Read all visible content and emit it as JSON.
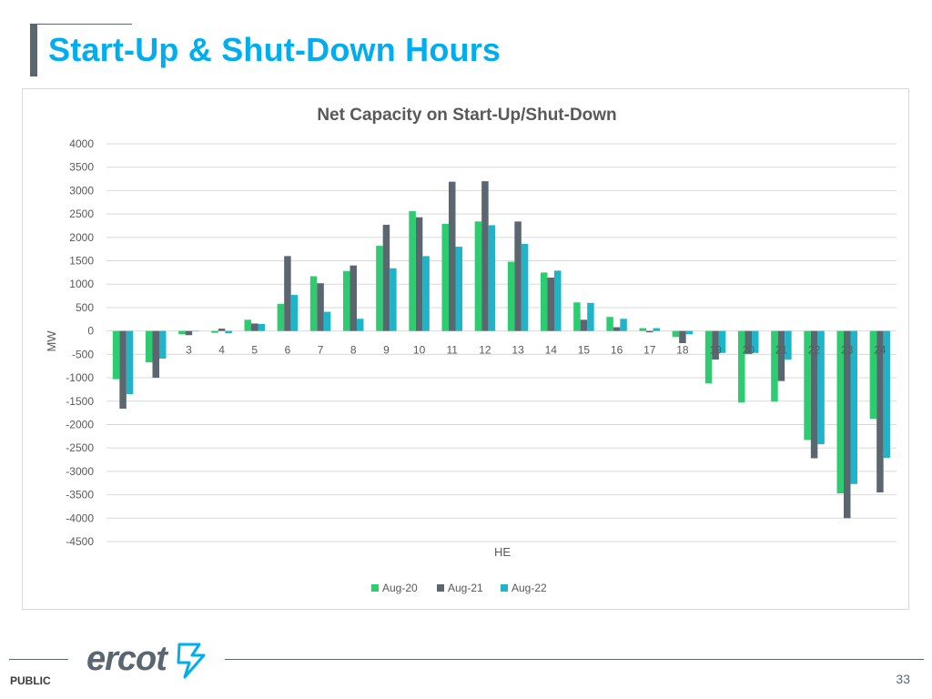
{
  "slide": {
    "title": "Start-Up & Shut-Down Hours",
    "footer_label": "PUBLIC",
    "page_number": "33",
    "logo_text": "ercot"
  },
  "colors": {
    "title": "#00aeef",
    "accent_bar": "#5b6770",
    "gridline": "#d9d9d9",
    "axis_text": "#595959",
    "logo": "#5b6770",
    "logo_bolt": "#00aeef"
  },
  "chart_data": {
    "type": "bar",
    "title": "Net Capacity on Start-Up/Shut-Down",
    "xlabel": "HE",
    "ylabel": "MW",
    "ylim": [
      -4500,
      4000
    ],
    "yticks": [
      4000,
      3500,
      3000,
      2500,
      2000,
      1500,
      1000,
      500,
      0,
      -500,
      -1000,
      -1500,
      -2000,
      -2500,
      -3000,
      -3500,
      -4000,
      -4500
    ],
    "grid": true,
    "legend_position": "bottom",
    "categories": [
      "1",
      "2",
      "3",
      "4",
      "5",
      "6",
      "7",
      "8",
      "9",
      "10",
      "11",
      "12",
      "13",
      "14",
      "15",
      "16",
      "17",
      "18",
      "19",
      "20",
      "21",
      "22",
      "23",
      "24"
    ],
    "shown_tick_labels": [
      "",
      "",
      "3",
      "4",
      "5",
      "6",
      "7",
      "8",
      "9",
      "10",
      "11",
      "12",
      "13",
      "14",
      "15",
      "16",
      "17",
      "18",
      "19",
      "20",
      "21",
      "22",
      "23",
      "24"
    ],
    "series": [
      {
        "name": "Aug-20",
        "color": "#2ecc71",
        "values": [
          -1030,
          -670,
          -70,
          -40,
          240,
          580,
          1170,
          1280,
          1820,
          2560,
          2290,
          2340,
          1480,
          1250,
          610,
          300,
          60,
          -130,
          -1120,
          -1530,
          -1510,
          -2330,
          -3470,
          -1880
        ]
      },
      {
        "name": "Aug-21",
        "color": "#5b6770",
        "values": [
          -1660,
          -1000,
          -90,
          50,
          160,
          1600,
          1020,
          1400,
          2270,
          2430,
          3190,
          3200,
          2340,
          1140,
          240,
          80,
          -30,
          -260,
          -610,
          -490,
          -1070,
          -2720,
          -4000,
          -3450
        ]
      },
      {
        "name": "Aug-22",
        "color": "#1fb5c9",
        "values": [
          -1350,
          -590,
          0,
          -50,
          150,
          770,
          410,
          260,
          1340,
          1600,
          1800,
          2260,
          1860,
          1290,
          600,
          260,
          60,
          -70,
          -470,
          -470,
          -610,
          -2420,
          -3270,
          -2710
        ]
      }
    ]
  }
}
